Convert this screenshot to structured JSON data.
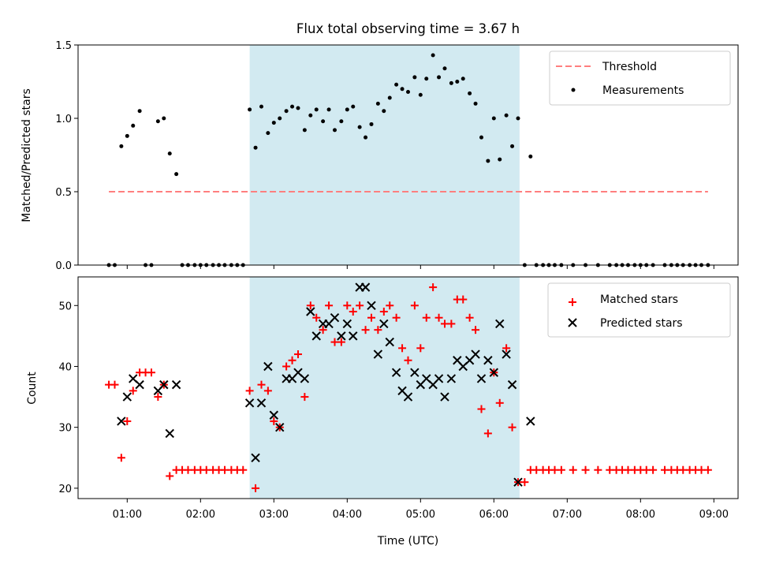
{
  "chart_data": [
    {
      "type": "scatter",
      "title": "Flux total observing time = 3.67 h",
      "xlabel": "",
      "ylabel": "Matched/Predicted stars",
      "ylim": [
        0,
        1.5
      ],
      "yticks": [
        "0.0",
        "0.5",
        "1.0",
        "1.5"
      ],
      "xlim_hours": [
        0.33,
        9.33
      ],
      "shaded_span_hours": [
        2.67,
        6.35
      ],
      "shaded_color": "#add8e6",
      "threshold": {
        "name": "Threshold",
        "value": 0.5,
        "x_range_hours": [
          0.75,
          8.92
        ],
        "color": "#ff7f7f",
        "style": "dashed"
      },
      "series": [
        {
          "name": "Measurements",
          "color": "#000000",
          "x_hours": [
            0.75,
            0.83,
            0.92,
            1.0,
            1.08,
            1.17,
            1.25,
            1.33,
            1.42,
            1.5,
            1.58,
            1.67,
            1.75,
            1.83,
            1.92,
            2.0,
            2.08,
            2.17,
            2.25,
            2.33,
            2.42,
            2.5,
            2.58,
            2.67,
            2.75,
            2.83,
            2.92,
            3.0,
            3.08,
            3.17,
            3.25,
            3.33,
            3.42,
            3.5,
            3.58,
            3.67,
            3.75,
            3.83,
            3.92,
            4.0,
            4.08,
            4.17,
            4.25,
            4.33,
            4.42,
            4.5,
            4.58,
            4.67,
            4.75,
            4.83,
            4.92,
            5.0,
            5.08,
            5.17,
            5.25,
            5.33,
            5.42,
            5.5,
            5.58,
            5.67,
            5.75,
            5.83,
            5.92,
            6.0,
            6.08,
            6.17,
            6.25,
            6.33,
            6.42,
            6.5,
            6.58,
            6.67,
            6.75,
            6.83,
            6.92,
            7.08,
            7.25,
            7.42,
            7.58,
            7.67,
            7.75,
            7.83,
            7.92,
            8.0,
            8.08,
            8.17,
            8.33,
            8.42,
            8.5,
            8.58,
            8.67,
            8.75,
            8.83,
            8.92
          ],
          "y": [
            0,
            0,
            0.81,
            0.88,
            0.95,
            1.05,
            0,
            0,
            0.98,
            1.0,
            0.76,
            0.62,
            0,
            0,
            0,
            0,
            0,
            0,
            0,
            0,
            0,
            0,
            0,
            1.06,
            0.8,
            1.08,
            0.9,
            0.97,
            1.0,
            1.05,
            1.08,
            1.07,
            0.92,
            1.02,
            1.06,
            0.98,
            1.06,
            0.92,
            0.98,
            1.06,
            1.08,
            0.94,
            0.87,
            0.96,
            1.1,
            1.05,
            1.14,
            1.23,
            1.2,
            1.18,
            1.28,
            1.16,
            1.27,
            1.43,
            1.28,
            1.34,
            1.24,
            1.25,
            1.27,
            1.17,
            1.1,
            0.87,
            0.71,
            1.0,
            0.72,
            1.02,
            0.81,
            1.0,
            0,
            0.74,
            0,
            0,
            0,
            0,
            0,
            0,
            0,
            0,
            0,
            0,
            0,
            0,
            0,
            0,
            0,
            0,
            0,
            0,
            0,
            0,
            0,
            0,
            0,
            0
          ]
        }
      ]
    },
    {
      "type": "scatter",
      "title": "",
      "xlabel": "Time (UTC)",
      "ylabel": "Count",
      "ylim": [
        18.3,
        54.7
      ],
      "yticks": [
        "20",
        "30",
        "40",
        "50"
      ],
      "xticks": [
        "01:00",
        "02:00",
        "03:00",
        "04:00",
        "05:00",
        "06:00",
        "07:00",
        "08:00",
        "09:00"
      ],
      "xlim_hours": [
        0.33,
        9.33
      ],
      "shaded_span_hours": [
        2.67,
        6.35
      ],
      "series": [
        {
          "name": "Matched stars",
          "marker": "plus",
          "color": "#ff0000",
          "x_hours": [
            0.75,
            0.83,
            0.92,
            1.0,
            1.08,
            1.17,
            1.25,
            1.33,
            1.42,
            1.5,
            1.58,
            1.67,
            1.75,
            1.83,
            1.92,
            2.0,
            2.08,
            2.17,
            2.25,
            2.33,
            2.42,
            2.5,
            2.58,
            2.67,
            2.75,
            2.83,
            2.92,
            3.0,
            3.08,
            3.17,
            3.25,
            3.33,
            3.42,
            3.5,
            3.58,
            3.67,
            3.75,
            3.83,
            3.92,
            4.0,
            4.08,
            4.17,
            4.25,
            4.33,
            4.42,
            4.5,
            4.58,
            4.67,
            4.75,
            4.83,
            4.92,
            5.0,
            5.08,
            5.17,
            5.25,
            5.33,
            5.42,
            5.5,
            5.58,
            5.67,
            5.75,
            5.83,
            5.92,
            6.0,
            6.08,
            6.17,
            6.25,
            6.33,
            6.42,
            6.5,
            6.58,
            6.67,
            6.75,
            6.83,
            6.92,
            7.08,
            7.25,
            7.42,
            7.58,
            7.67,
            7.75,
            7.83,
            7.92,
            8.0,
            8.08,
            8.17,
            8.33,
            8.42,
            8.5,
            8.58,
            8.67,
            8.75,
            8.83,
            8.92
          ],
          "y": [
            37,
            37,
            25,
            31,
            36,
            39,
            39,
            39,
            35,
            37,
            22,
            23,
            23,
            23,
            23,
            23,
            23,
            23,
            23,
            23,
            23,
            23,
            23,
            36,
            20,
            37,
            36,
            31,
            30,
            40,
            41,
            42,
            35,
            50,
            48,
            46,
            50,
            44,
            44,
            50,
            49,
            50,
            46,
            48,
            46,
            49,
            50,
            48,
            43,
            41,
            50,
            43,
            48,
            53,
            48,
            47,
            47,
            51,
            51,
            48,
            46,
            33,
            29,
            39,
            34,
            43,
            30,
            21,
            21,
            23,
            23,
            23,
            23,
            23,
            23,
            23,
            23,
            23,
            23,
            23,
            23,
            23,
            23,
            23,
            23,
            23,
            23,
            23,
            23,
            23,
            23,
            23,
            23,
            23
          ]
        },
        {
          "name": "Predicted stars",
          "marker": "x",
          "color": "#000000",
          "x_hours": [
            0.92,
            1.0,
            1.08,
            1.17,
            1.42,
            1.5,
            1.58,
            1.67,
            2.67,
            2.75,
            2.83,
            2.92,
            3.0,
            3.08,
            3.17,
            3.25,
            3.33,
            3.42,
            3.5,
            3.58,
            3.67,
            3.75,
            3.83,
            3.92,
            4.0,
            4.08,
            4.17,
            4.25,
            4.33,
            4.42,
            4.5,
            4.58,
            4.67,
            4.75,
            4.83,
            4.92,
            5.0,
            5.08,
            5.17,
            5.25,
            5.33,
            5.42,
            5.5,
            5.58,
            5.67,
            5.75,
            5.83,
            5.92,
            6.0,
            6.08,
            6.17,
            6.25,
            6.33,
            6.5
          ],
          "y": [
            31,
            35,
            38,
            37,
            36,
            37,
            29,
            37,
            34,
            25,
            34,
            40,
            32,
            30,
            38,
            38,
            39,
            38,
            49,
            45,
            47,
            47,
            48,
            45,
            47,
            45,
            53,
            53,
            50,
            42,
            47,
            44,
            39,
            36,
            35,
            39,
            37,
            38,
            37,
            38,
            35,
            38,
            41,
            40,
            41,
            42,
            38,
            41,
            39,
            47,
            42,
            37,
            21,
            31
          ]
        }
      ]
    }
  ]
}
